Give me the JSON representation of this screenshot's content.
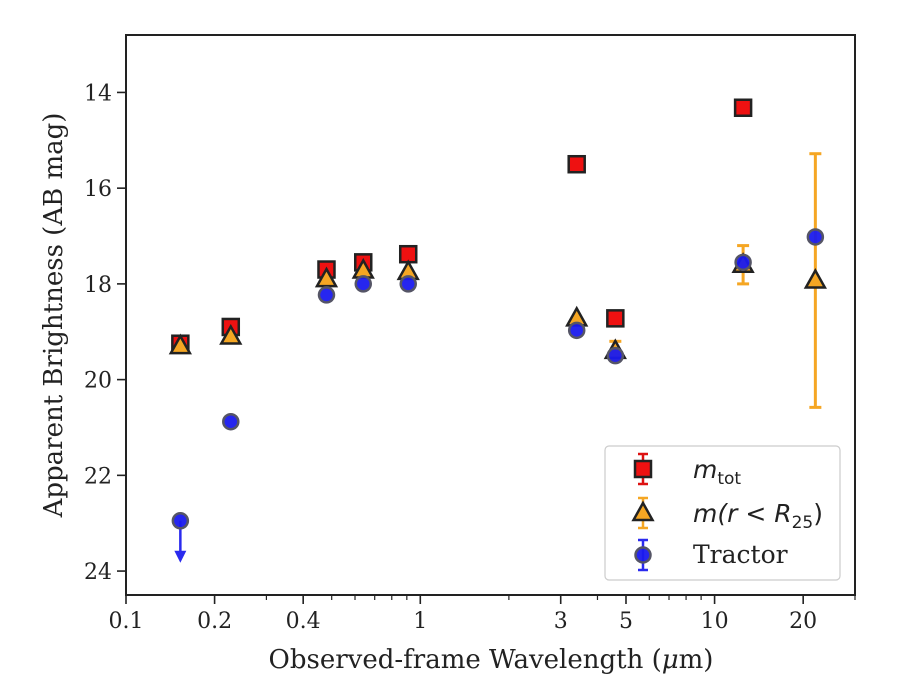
{
  "chart_data": {
    "type": "scatter",
    "xlabel_pre": "Observed-frame Wavelength (",
    "xlabel_mu": "μ",
    "xlabel_post": "m)",
    "ylabel": "Apparent Brightness (AB mag)",
    "xscale": "log",
    "xlim": [
      0.1,
      30
    ],
    "ylim": [
      24.5,
      12.8
    ],
    "y_inverted": true,
    "x_ticks": [
      {
        "value": 0.1,
        "label": "0.1"
      },
      {
        "value": 0.2,
        "label": "0.2"
      },
      {
        "value": 0.4,
        "label": "0.4"
      },
      {
        "value": 1,
        "label": "1"
      },
      {
        "value": 3,
        "label": "3"
      },
      {
        "value": 5,
        "label": "5"
      },
      {
        "value": 10,
        "label": "10"
      },
      {
        "value": 20,
        "label": "20"
      }
    ],
    "y_ticks": [
      {
        "value": 14,
        "label": "14"
      },
      {
        "value": 16,
        "label": "16"
      },
      {
        "value": 18,
        "label": "18"
      },
      {
        "value": 20,
        "label": "20"
      },
      {
        "value": 22,
        "label": "22"
      },
      {
        "value": 24,
        "label": "24"
      }
    ],
    "grid": false,
    "legend_position": "lower-right",
    "series": [
      {
        "name": "m_tot",
        "legend_main": "m",
        "legend_sub": "tot",
        "marker": "square",
        "color": "#ee1111",
        "errcolor": "#dd1111",
        "points": [
          {
            "x": 0.153,
            "y": 19.25
          },
          {
            "x": 0.227,
            "y": 18.9
          },
          {
            "x": 0.48,
            "y": 17.7
          },
          {
            "x": 0.64,
            "y": 17.55
          },
          {
            "x": 0.91,
            "y": 17.38
          },
          {
            "x": 3.4,
            "y": 15.5
          },
          {
            "x": 4.6,
            "y": 18.72
          },
          {
            "x": 12.5,
            "y": 14.32
          }
        ]
      },
      {
        "name": "m(r<R25)",
        "legend_main": "m(r < R",
        "legend_sub": "25",
        "legend_close": ")",
        "marker": "triangle",
        "color": "#f5a623",
        "errcolor": "#f5a623",
        "points": [
          {
            "x": 0.153,
            "y": 19.3
          },
          {
            "x": 0.227,
            "y": 19.1
          },
          {
            "x": 0.48,
            "y": 17.9
          },
          {
            "x": 0.64,
            "y": 17.72
          },
          {
            "x": 0.91,
            "y": 17.75
          },
          {
            "x": 3.4,
            "y": 18.72
          },
          {
            "x": 4.6,
            "y": 19.4,
            "err": 0.2
          },
          {
            "x": 12.5,
            "y": 17.6,
            "err": 0.4
          },
          {
            "x": 22.0,
            "y": 17.93,
            "err_low": 2.65,
            "err_high": 2.65
          }
        ]
      },
      {
        "name": "Tractor",
        "legend_main": "Tractor",
        "marker": "circle",
        "color": "#1a1aee",
        "errcolor": "#2a2aee",
        "points": [
          {
            "x": 0.153,
            "y": 22.95,
            "upper_limit": true
          },
          {
            "x": 0.227,
            "y": 20.88
          },
          {
            "x": 0.48,
            "y": 18.23
          },
          {
            "x": 0.64,
            "y": 18.0
          },
          {
            "x": 0.91,
            "y": 18.0
          },
          {
            "x": 3.4,
            "y": 18.97
          },
          {
            "x": 4.6,
            "y": 19.5
          },
          {
            "x": 12.5,
            "y": 17.55
          },
          {
            "x": 22.0,
            "y": 17.02
          }
        ]
      }
    ]
  }
}
